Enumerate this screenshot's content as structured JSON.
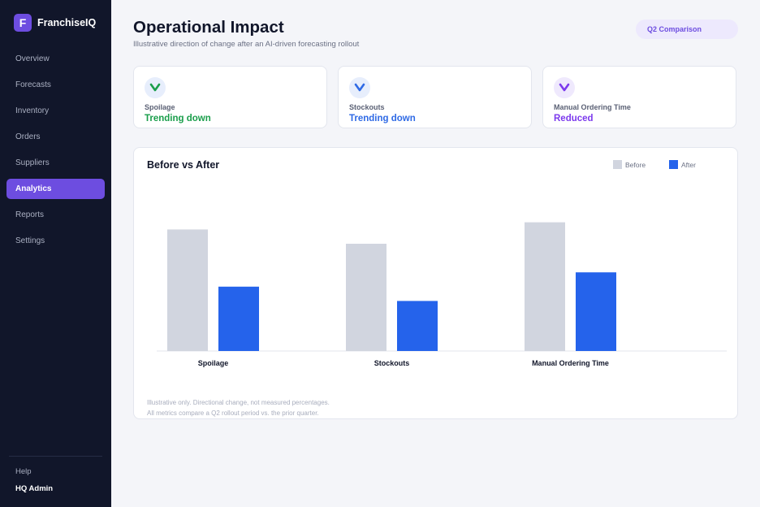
{
  "app": {
    "logo_letter": "F",
    "name": "FranchiseIQ"
  },
  "sidebar": {
    "items": [
      {
        "label": "Overview",
        "active": false
      },
      {
        "label": "Forecasts",
        "active": false
      },
      {
        "label": "Inventory",
        "active": false
      },
      {
        "label": "Orders",
        "active": false
      },
      {
        "label": "Suppliers",
        "active": false
      },
      {
        "label": "Analytics",
        "active": true
      },
      {
        "label": "Reports",
        "active": false
      },
      {
        "label": "Settings",
        "active": false
      }
    ],
    "help": "Help",
    "user": "HQ Admin"
  },
  "header": {
    "title": "Operational Impact",
    "subtitle": "Illustrative direction of change after an AI-driven forecasting rollout",
    "badge": "Q2 Comparison"
  },
  "cards": [
    {
      "label": "Spoilage",
      "value": "Trending down",
      "icon": "chevron-down-icon",
      "color": "#1a9e4b",
      "icon_bg": "#e7eefc"
    },
    {
      "label": "Stockouts",
      "value": "Trending down",
      "icon": "chevron-down-icon",
      "color": "#2f6ae5",
      "icon_bg": "#e7eefc"
    },
    {
      "label": "Manual Ordering Time",
      "value": "Reduced",
      "icon": "chevron-down-icon",
      "color": "#7c3aed",
      "icon_bg": "#efe9fd"
    }
  ],
  "chart_data": {
    "type": "bar",
    "title": "Before vs After",
    "categories": [
      "Spoilage",
      "Stockouts",
      "Manual Ordering Time"
    ],
    "series": [
      {
        "name": "Before",
        "color": "#d1d5df",
        "values": [
          85,
          75,
          90
        ]
      },
      {
        "name": "After",
        "color": "#2563eb",
        "values": [
          45,
          35,
          55
        ]
      }
    ],
    "ylim": [
      0,
      100
    ],
    "grid": false,
    "legend_position": "top-right"
  },
  "footnotes": [
    "Illustrative only. Directional change, not measured percentages.",
    "All metrics compare a Q2 rollout period vs. the prior quarter."
  ]
}
